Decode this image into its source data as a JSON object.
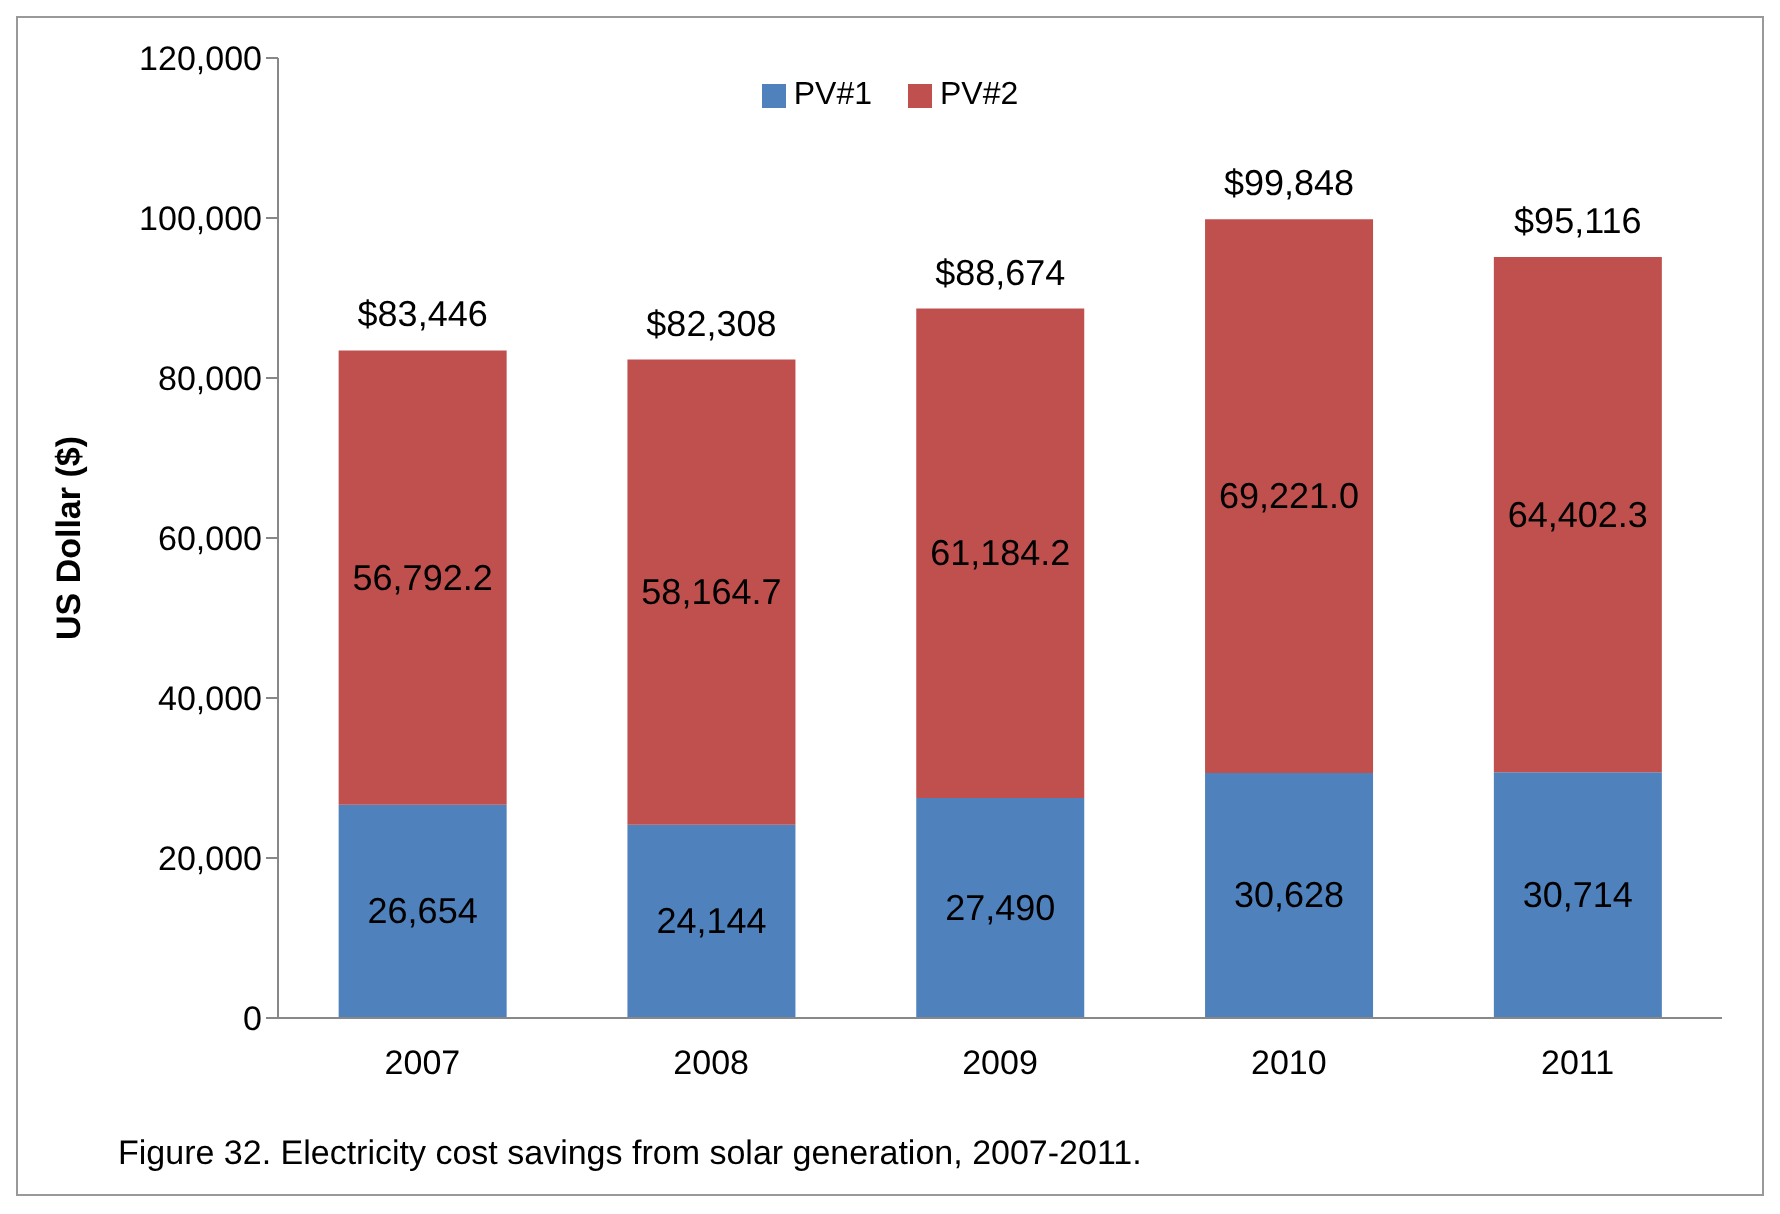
{
  "chart_data": {
    "type": "bar",
    "stacked": true,
    "ylabel": "US Dollar ($)",
    "categories": [
      "2007",
      "2008",
      "2009",
      "2010",
      "2011"
    ],
    "series": [
      {
        "name": "PV#1",
        "color": "#4f81bd",
        "values": [
          26654,
          24144,
          27490,
          30628,
          30714
        ],
        "value_labels": [
          "26,654",
          "24,144",
          "27,490",
          "30,628",
          "30,714"
        ]
      },
      {
        "name": "PV#2",
        "color": "#c0504d",
        "values": [
          56792.2,
          58164.7,
          61184.2,
          69221.0,
          64402.3
        ],
        "value_labels": [
          "56,792.2",
          "58,164.7",
          "61,184.2",
          "69,221.0",
          "64,402.3"
        ]
      }
    ],
    "totals": [
      "$83,446",
      "$82,308",
      "$88,674",
      "$99,848",
      "$95,116"
    ],
    "ylim": [
      0,
      120000
    ],
    "yticks": [
      0,
      {
        "value": 20000,
        "label": "20,000"
      },
      {
        "value": 40000,
        "label": "40,000"
      },
      {
        "value": 60000,
        "label": "60,000"
      },
      {
        "value": 80000,
        "label": "80,000"
      },
      {
        "value": 100000,
        "label": "100,000"
      },
      {
        "value": 120000,
        "label": "120,000"
      }
    ],
    "grid": false,
    "legend": "top",
    "annotations": [
      "Figure 32. Electricity cost savings from solar generation, 2007-2011."
    ]
  }
}
